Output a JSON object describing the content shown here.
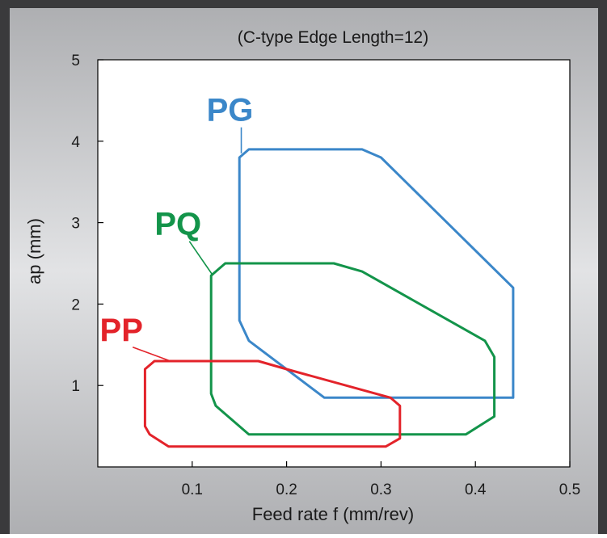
{
  "chart_data": {
    "type": "area",
    "title": "(C-type Edge Length=12)",
    "xlabel": "Feed rate f (mm/rev)",
    "ylabel": "ap (mm)",
    "xlim": [
      0,
      0.5
    ],
    "ylim": [
      0,
      5
    ],
    "xticks": [
      0.1,
      0.2,
      0.3,
      0.4,
      0.5
    ],
    "yticks": [
      1,
      2,
      3,
      4,
      5
    ],
    "grid": false,
    "series": [
      {
        "name": "PG",
        "color": "#3b87c9",
        "points": [
          [
            0.15,
            3.8
          ],
          [
            0.16,
            3.9
          ],
          [
            0.28,
            3.9
          ],
          [
            0.3,
            3.8
          ],
          [
            0.44,
            2.2
          ],
          [
            0.44,
            0.85
          ],
          [
            0.24,
            0.85
          ],
          [
            0.16,
            1.55
          ],
          [
            0.15,
            1.8
          ]
        ]
      },
      {
        "name": "PQ",
        "color": "#13944a",
        "points": [
          [
            0.12,
            2.35
          ],
          [
            0.135,
            2.5
          ],
          [
            0.25,
            2.5
          ],
          [
            0.28,
            2.4
          ],
          [
            0.41,
            1.55
          ],
          [
            0.42,
            1.35
          ],
          [
            0.42,
            0.62
          ],
          [
            0.39,
            0.4
          ],
          [
            0.16,
            0.4
          ],
          [
            0.125,
            0.75
          ],
          [
            0.12,
            0.9
          ]
        ]
      },
      {
        "name": "PP",
        "color": "#e3232a",
        "points": [
          [
            0.05,
            1.2
          ],
          [
            0.06,
            1.3
          ],
          [
            0.17,
            1.3
          ],
          [
            0.2,
            1.2
          ],
          [
            0.31,
            0.85
          ],
          [
            0.32,
            0.75
          ],
          [
            0.32,
            0.35
          ],
          [
            0.305,
            0.25
          ],
          [
            0.075,
            0.25
          ],
          [
            0.055,
            0.4
          ],
          [
            0.05,
            0.5
          ]
        ]
      }
    ],
    "annotations": [
      {
        "text": "PG",
        "series": "PG",
        "label_at": [
          0.14,
          4.25
        ],
        "pointer_to": [
          0.152,
          3.85
        ]
      },
      {
        "text": "PQ",
        "series": "PQ",
        "label_at": [
          0.085,
          2.85
        ],
        "pointer_to": [
          0.122,
          2.35
        ]
      },
      {
        "text": "PP",
        "series": "PP",
        "label_at": [
          0.025,
          1.55
        ],
        "pointer_to": [
          0.077,
          1.3
        ]
      }
    ]
  }
}
